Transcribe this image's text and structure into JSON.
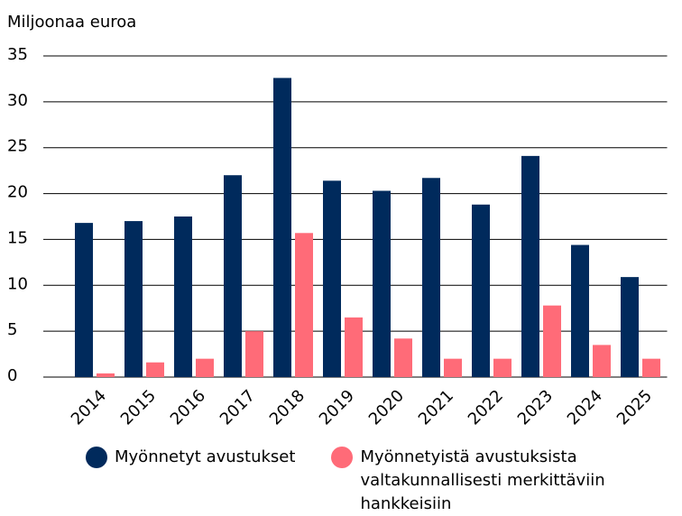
{
  "chart_data": {
    "type": "bar",
    "title": "Miljoonaa euroa",
    "categories": [
      "2014",
      "2015",
      "2016",
      "2017",
      "2018",
      "2019",
      "2020",
      "2021",
      "2022",
      "2023",
      "2024",
      "2025"
    ],
    "series": [
      {
        "name": "Myönnetyt avustukset",
        "color": "#002a5c",
        "values": [
          16.8,
          17.0,
          17.5,
          22.0,
          32.6,
          21.4,
          20.3,
          21.7,
          18.8,
          24.1,
          14.4,
          10.9
        ]
      },
      {
        "name": "Myönnetyistä avustuksista valtakunnallisesti merkittäviin hankkeisiin",
        "color": "#ff6b78",
        "values": [
          0.4,
          1.6,
          2.0,
          5.0,
          15.7,
          6.5,
          4.2,
          2.0,
          2.0,
          7.8,
          3.5,
          2.0
        ]
      }
    ],
    "ylim": [
      0,
      35
    ],
    "yticks": [
      0,
      5,
      10,
      15,
      20,
      25,
      30,
      35
    ],
    "grid": true,
    "legend": "bottom"
  }
}
